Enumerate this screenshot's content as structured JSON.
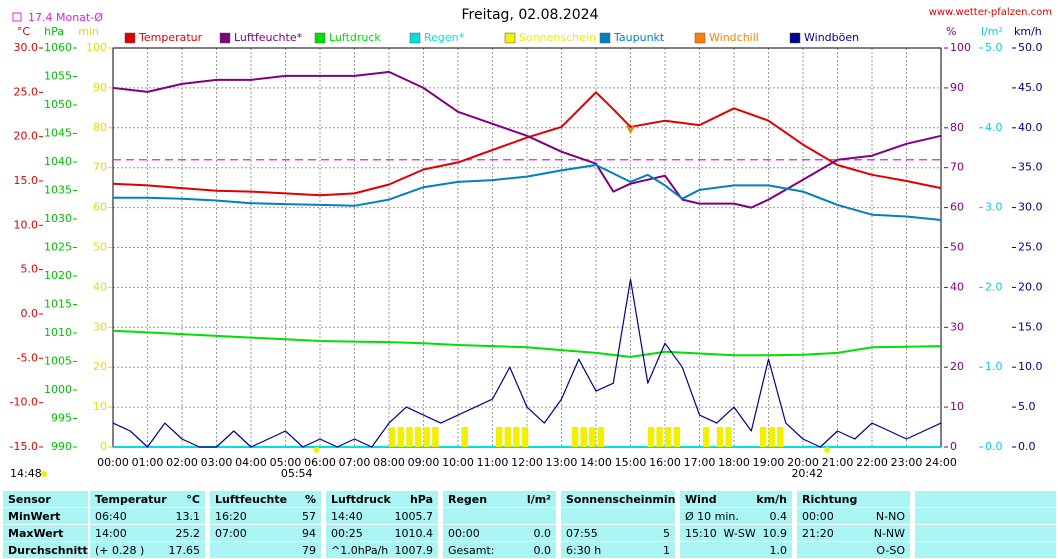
{
  "header": {
    "title": "Freitag, 02.08.2024",
    "url": "www.wetter-pfalzen.com",
    "time": "14:48"
  },
  "chart_data": {
    "type": "line",
    "xlim": [
      0,
      24
    ],
    "xgrid": true,
    "xticks": [
      {
        "value": 0,
        "label": "00:00"
      },
      {
        "value": 1,
        "label": "01:00"
      },
      {
        "value": 2,
        "label": "02:00"
      },
      {
        "value": 3,
        "label": "03:00"
      },
      {
        "value": 4,
        "label": "04:00"
      },
      {
        "value": 5,
        "label": "05:00"
      },
      {
        "value": 6,
        "label": "06:00"
      },
      {
        "value": 7,
        "label": "07:00"
      },
      {
        "value": 8,
        "label": "08:00"
      },
      {
        "value": 9,
        "label": "09:00"
      },
      {
        "value": 10,
        "label": "10:00"
      },
      {
        "value": 11,
        "label": "11:00"
      },
      {
        "value": 12,
        "label": "12:00"
      },
      {
        "value": 13,
        "label": "13:00"
      },
      {
        "value": 14,
        "label": "14:00"
      },
      {
        "value": 15,
        "label": "15:00"
      },
      {
        "value": 16,
        "label": "16:00"
      },
      {
        "value": 17,
        "label": "17:00"
      },
      {
        "value": 18,
        "label": "18:00"
      },
      {
        "value": 19,
        "label": "19:00"
      },
      {
        "value": 20,
        "label": "20:00"
      },
      {
        "value": 21,
        "label": "21:00"
      },
      {
        "value": 22,
        "label": "22:00"
      },
      {
        "value": 23,
        "label": "23:00"
      },
      {
        "value": 24,
        "label": "24:00"
      }
    ],
    "axes": {
      "temp": {
        "label": "°C",
        "side": "left",
        "color": "#e00000",
        "lim": [
          -15,
          30
        ],
        "ticks": [
          {
            "value": -15,
            "label": "-15.0"
          },
          {
            "value": -10,
            "label": "-10.0"
          },
          {
            "value": -5,
            "label": "-5.0"
          },
          {
            "value": 0,
            "label": "0.0"
          },
          {
            "value": 5,
            "label": "5.0"
          },
          {
            "value": 10,
            "label": "10.0"
          },
          {
            "value": 15,
            "label": "15.0"
          },
          {
            "value": 20,
            "label": "20.0"
          },
          {
            "value": 25,
            "label": "25.0"
          },
          {
            "value": 30,
            "label": "30.0"
          }
        ]
      },
      "hpa": {
        "label": "hPa",
        "side": "left",
        "color": "#00c000",
        "lim": [
          990,
          1060
        ],
        "ticks": [
          990,
          995,
          1000,
          1005,
          1010,
          1015,
          1020,
          1025,
          1030,
          1035,
          1040,
          1045,
          1050,
          1055,
          1060
        ]
      },
      "min": {
        "label": "min",
        "side": "left",
        "color": "#e0e000",
        "lim": [
          0,
          100
        ],
        "grid": true,
        "ticks": [
          0,
          10,
          20,
          30,
          40,
          50,
          60,
          70,
          80,
          90,
          100
        ]
      },
      "pct": {
        "label": "%",
        "side": "right",
        "color": "#800080",
        "lim": [
          0,
          100
        ],
        "ticks": [
          0,
          10,
          20,
          30,
          40,
          50,
          60,
          70,
          80,
          90,
          100
        ]
      },
      "rain": {
        "label": "l/m²",
        "side": "right",
        "color": "#00d0e0",
        "lim": [
          0,
          5
        ],
        "ticks": [
          {
            "value": 0,
            "label": "0.0"
          },
          {
            "value": 1,
            "label": "1.0"
          },
          {
            "value": 2,
            "label": "2.0"
          },
          {
            "value": 3,
            "label": "3.0"
          },
          {
            "value": 4,
            "label": "4.0"
          },
          {
            "value": 5,
            "label": "5.0"
          }
        ]
      },
      "kmh": {
        "label": "km/h",
        "side": "right",
        "color": "#000080",
        "lim": [
          0,
          50
        ],
        "ticks": [
          {
            "value": 0,
            "label": "0.0"
          },
          {
            "value": 5,
            "label": "5.0"
          },
          {
            "value": 10,
            "label": "10.0"
          },
          {
            "value": 15,
            "label": "15.0"
          },
          {
            "value": 20,
            "label": "20.0"
          },
          {
            "value": 25,
            "label": "25.0"
          },
          {
            "value": 30,
            "label": "30.0"
          },
          {
            "value": 35,
            "label": "35.0"
          },
          {
            "value": 40,
            "label": "40.0"
          },
          {
            "value": 45,
            "label": "45.0"
          },
          {
            "value": 50,
            "label": "50.0"
          }
        ]
      }
    },
    "monthly_avg": {
      "label": "17.4 Monat-Ø",
      "value": 17.4,
      "axis": "temp",
      "color": "#e020e0"
    },
    "sun_events": [
      {
        "value": 5.9,
        "label": "05:54"
      },
      {
        "value": 20.7,
        "label": "20:42"
      }
    ],
    "series": [
      {
        "name": "Temperatur",
        "color": "#e00000",
        "axis": "temp",
        "x": [
          0,
          1,
          2,
          3,
          4,
          5,
          6,
          7,
          8,
          9,
          10,
          11,
          12,
          13,
          14,
          14.5,
          15,
          16,
          17,
          18,
          19,
          20,
          21,
          22,
          23,
          24
        ],
        "values": [
          14.7,
          14.5,
          14.2,
          13.9,
          13.8,
          13.6,
          13.4,
          13.6,
          14.6,
          16.3,
          17.1,
          18.5,
          19.9,
          21.1,
          25.0,
          23.1,
          21.1,
          21.8,
          21.3,
          23.2,
          21.8,
          19.1,
          16.8,
          15.7,
          15.0,
          14.2
        ]
      },
      {
        "name": "Luftfeuchte*",
        "color": "#800080",
        "axis": "pct",
        "x": [
          0,
          1,
          2,
          3,
          4,
          5,
          6,
          7,
          8,
          9,
          10,
          11,
          12,
          13,
          14,
          14.5,
          15,
          15.5,
          16,
          16.5,
          17,
          18,
          18.5,
          19,
          20,
          21,
          22,
          23,
          24
        ],
        "values": [
          90,
          89,
          91,
          92,
          92,
          93,
          93,
          93,
          94,
          90,
          84,
          81,
          78,
          74,
          71,
          64,
          66,
          67,
          68,
          62,
          61,
          61,
          60,
          62,
          67,
          72,
          73,
          76,
          78
        ]
      },
      {
        "name": "Luftdruck",
        "color": "#00e000",
        "axis": "hpa",
        "x": [
          0,
          1,
          2,
          3,
          4,
          5,
          6,
          7,
          8,
          9,
          10,
          11,
          12,
          13,
          14,
          15,
          16,
          17,
          18,
          19,
          20,
          21,
          22,
          23,
          24
        ],
        "values": [
          1010.4,
          1010.1,
          1009.8,
          1009.5,
          1009.2,
          1008.9,
          1008.6,
          1008.5,
          1008.4,
          1008.2,
          1007.9,
          1007.7,
          1007.5,
          1007.0,
          1006.5,
          1005.8,
          1006.7,
          1006.4,
          1006.1,
          1006.1,
          1006.2,
          1006.5,
          1007.5,
          1007.6,
          1007.7
        ]
      },
      {
        "name": "Regen*",
        "color": "#00e0e0",
        "axis": "rain",
        "x": [
          0,
          24
        ],
        "values": [
          0,
          0
        ]
      },
      {
        "name": "Sonnenschein",
        "color": "#f0f000",
        "axis": "min",
        "type": "bar",
        "x": [
          8,
          8.25,
          8.5,
          8.75,
          9,
          9.25,
          10.1,
          11.1,
          11.35,
          11.6,
          11.85,
          13.3,
          13.55,
          13.8,
          14.05,
          15.5,
          15.75,
          16,
          16.25,
          17.1,
          17.5,
          17.75,
          18.75,
          19,
          19.25
        ],
        "values": [
          5,
          5,
          5,
          5,
          5,
          5,
          5,
          5,
          5,
          5,
          5,
          5,
          5,
          5,
          5,
          5,
          5,
          5,
          5,
          5,
          5,
          5,
          5,
          5,
          5
        ]
      },
      {
        "name": "Taupunkt",
        "color": "#0080c0",
        "axis": "temp",
        "x": [
          0,
          1,
          2,
          3,
          4,
          5,
          6,
          7,
          8,
          9,
          10,
          11,
          12,
          13,
          14,
          15,
          15.5,
          16,
          16.5,
          17,
          18,
          19,
          20,
          21,
          22,
          23,
          24
        ],
        "values": [
          13.1,
          13.1,
          13.0,
          12.8,
          12.5,
          12.4,
          12.3,
          12.2,
          12.9,
          14.3,
          14.9,
          15.1,
          15.5,
          16.2,
          16.8,
          14.9,
          15.7,
          14.5,
          13.0,
          14.0,
          14.5,
          14.5,
          13.8,
          12.3,
          11.2,
          11.0,
          10.6
        ]
      },
      {
        "name": "Windchill",
        "color": "#ff8000",
        "axis": "temp",
        "x": [
          14.9,
          15.0,
          15.1
        ],
        "values": [
          21.3,
          20.5,
          21.3
        ]
      },
      {
        "name": "Windböen",
        "color": "#000090",
        "axis": "kmh",
        "x": [
          0,
          0.5,
          1,
          1.5,
          2,
          2.5,
          3,
          3.5,
          4,
          4.5,
          5,
          5.5,
          6,
          6.5,
          7,
          7.5,
          8,
          8.5,
          9,
          9.5,
          10,
          10.5,
          11,
          11.5,
          12,
          12.5,
          13,
          13.5,
          14,
          14.5,
          15,
          15.5,
          16,
          16.5,
          17,
          17.5,
          18,
          18.5,
          19,
          19.5,
          20,
          20.5,
          21,
          21.5,
          22,
          22.5,
          23,
          23.5,
          24
        ],
        "values": [
          3,
          2,
          0,
          3,
          1,
          0,
          0,
          2,
          0,
          1,
          2,
          0,
          1,
          0,
          1,
          0,
          3,
          5,
          4,
          3,
          4,
          5,
          6,
          10,
          5,
          3,
          6,
          11,
          7,
          8,
          21,
          8,
          13,
          10,
          4,
          3,
          5,
          2,
          11,
          3,
          1,
          0,
          2,
          1,
          3,
          2,
          1,
          2,
          3
        ]
      }
    ]
  },
  "table": {
    "headers": [
      [
        "Sensor"
      ],
      [
        "Temperatur",
        "°C"
      ],
      [
        "Luftfeuchte",
        "%"
      ],
      [
        "Luftdruck",
        "hPa"
      ],
      [
        "Regen",
        "l/m²"
      ],
      [
        "Sonnenschein",
        "min"
      ],
      [
        "Wind",
        "km/h"
      ],
      [
        "Richtung"
      ]
    ],
    "rows": [
      {
        "label": "MinWert",
        "cells": [
          [
            "06:40",
            "13.1"
          ],
          [
            "16:20",
            "57"
          ],
          [
            "14:40",
            "1005.7"
          ],
          [],
          [],
          [
            "Ø 10 min.",
            "0.4"
          ],
          [
            "00:00",
            "N-NO"
          ]
        ]
      },
      {
        "label": "MaxWert",
        "cells": [
          [
            "14:00",
            "25.2"
          ],
          [
            "07:00",
            "94"
          ],
          [
            "00:25",
            "1010.4"
          ],
          [
            "00:00",
            "0.0"
          ],
          [
            "07:55",
            "5"
          ],
          [
            "15:10",
            "W-SW",
            "10.9"
          ],
          [
            "21:20",
            "N-NW"
          ]
        ]
      },
      {
        "label": "Durchschnitt",
        "cells": [
          [
            "(+ 0.28 )",
            "17.65"
          ],
          [
            null,
            "79"
          ],
          [
            "^1.0hPa/h",
            "1007.9"
          ],
          [
            "Gesamt:",
            "0.0"
          ],
          [
            "6:30 h",
            "1"
          ],
          [
            null,
            "1.0"
          ],
          [
            null,
            "O-SO"
          ]
        ]
      }
    ]
  }
}
